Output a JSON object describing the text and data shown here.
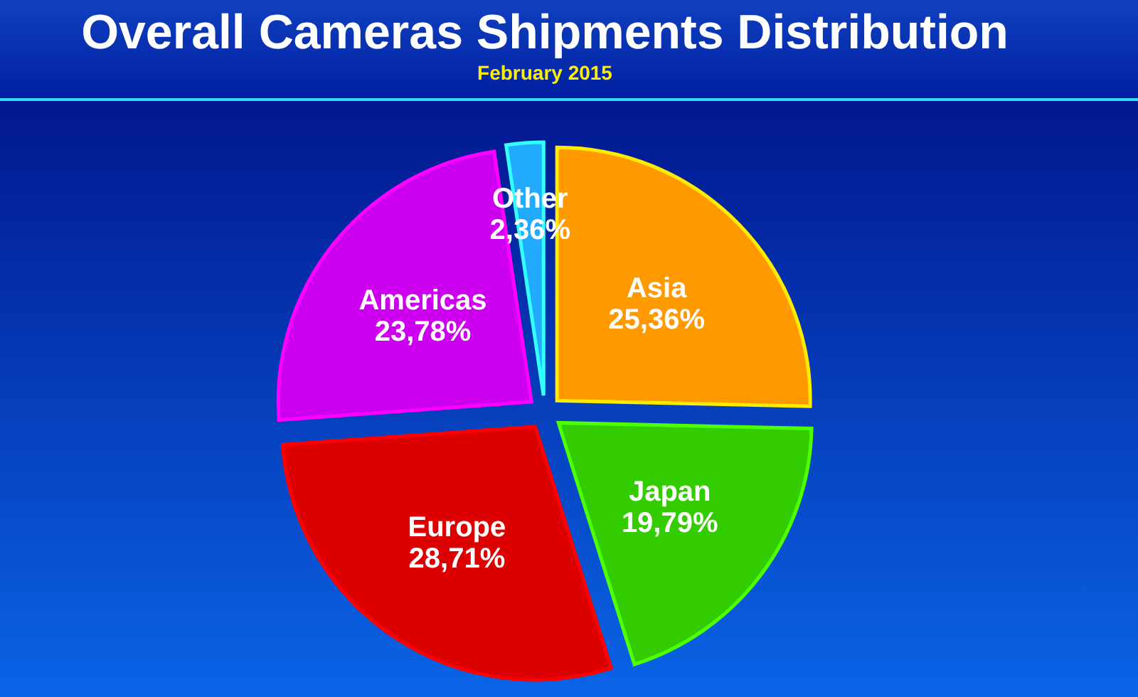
{
  "chart_data": {
    "type": "pie",
    "title": "Overall Cameras Shipments Distribution",
    "subtitle": "February 2015",
    "categories": [
      "Asia",
      "Japan",
      "Europe",
      "Americas",
      "Other"
    ],
    "values": [
      25.36,
      19.79,
      28.71,
      23.78,
      2.36
    ],
    "value_labels": [
      "25,36%",
      "19,79%",
      "28,71%",
      "23,78%",
      "2,36%"
    ],
    "colors": [
      "#ff9900",
      "#33cc00",
      "#dd0000",
      "#cc00ee",
      "#22aaff"
    ]
  }
}
